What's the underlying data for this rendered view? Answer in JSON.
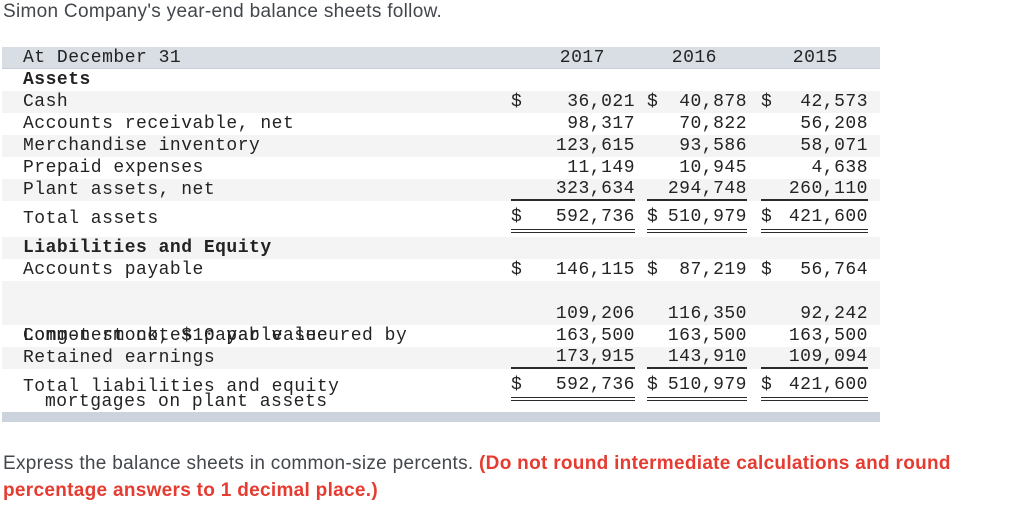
{
  "title": "Simon Company's year-end balance sheets follow.",
  "currency": "$",
  "table": {
    "header": {
      "label": "At December 31",
      "years": [
        "2017",
        "2016",
        "2015"
      ]
    },
    "sections": [
      {
        "heading": "Assets",
        "rows": [
          {
            "label": "Cash",
            "dollar": true,
            "values": [
              "36,021",
              "40,878",
              "42,573"
            ]
          },
          {
            "label": "Accounts receivable, net",
            "dollar": false,
            "values": [
              "98,317",
              "70,822",
              "56,208"
            ]
          },
          {
            "label": "Merchandise inventory",
            "dollar": false,
            "values": [
              "123,615",
              "93,586",
              "58,071"
            ]
          },
          {
            "label": "Prepaid expenses",
            "dollar": false,
            "values": [
              "11,149",
              "10,945",
              "4,638"
            ]
          },
          {
            "label": "Plant assets, net",
            "dollar": false,
            "values": [
              "323,634",
              "294,748",
              "260,110"
            ],
            "underline": true
          }
        ],
        "total": {
          "label": "Total assets",
          "dollar": true,
          "values": [
            "592,736",
            "510,979",
            "421,600"
          ]
        }
      },
      {
        "heading": "Liabilities and Equity",
        "rows": [
          {
            "label": "Accounts payable",
            "dollar": true,
            "values": [
              "146,115",
              "87,219",
              "56,764"
            ]
          },
          {
            "label": "Long-term notes payable secured by",
            "label_line2": "mortgages on plant assets",
            "dollar": false,
            "values": [
              "109,206",
              "116,350",
              "92,242"
            ]
          },
          {
            "label": "Common stock, $10 par value",
            "dollar": false,
            "values": [
              "163,500",
              "163,500",
              "163,500"
            ]
          },
          {
            "label": "Retained earnings",
            "dollar": false,
            "values": [
              "173,915",
              "143,910",
              "109,094"
            ],
            "underline": true
          }
        ],
        "total": {
          "label": "Total liabilities and equity",
          "dollar": true,
          "values": [
            "592,736",
            "510,979",
            "421,600"
          ]
        }
      }
    ]
  },
  "instructions": {
    "normal": "Express the balance sheets in common-size percents. ",
    "bold_red_line1": "(Do not round intermediate calculations and round",
    "bold_red_line2": "percentage answers to 1 decimal place.)"
  },
  "colors": {
    "accent_red": "#e53b30",
    "header_bar": "#d9dde4",
    "row_shade": "#f4f4f5",
    "footer_bar": "#ccd3dd",
    "table_text": "#232323"
  }
}
